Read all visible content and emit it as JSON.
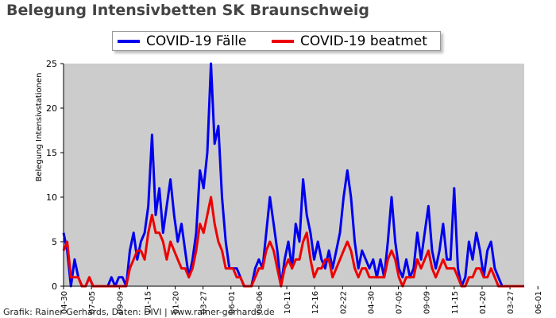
{
  "chart_data": {
    "type": "line",
    "title": "Belegung Intensivbetten SK Braunschweig",
    "ylabel": "Belegung Intensivstationen",
    "xlabel": "",
    "ylim": [
      0,
      25
    ],
    "yticks": [
      0,
      5,
      10,
      15,
      20,
      25
    ],
    "x_tick_labels": [
      "04-30",
      "07-05",
      "09-09",
      "11-15",
      "01-20",
      "03-27",
      "06-01",
      "08-06",
      "10-11",
      "12-16",
      "02-22",
      "04-30",
      "07-05",
      "09-09",
      "11-15",
      "01-20",
      "03-27",
      "06-01"
    ],
    "grid": false,
    "legend_position": "top",
    "colors": {
      "plot_background": "#cccccc",
      "fall_line": "#0000ee",
      "beatmet_line": "#ee0000"
    },
    "series": [
      {
        "name": "COVID-19 Fälle",
        "color": "#0000ee",
        "values": [
          6,
          4,
          0,
          3,
          1,
          0,
          0,
          1,
          0,
          0,
          0,
          0,
          0,
          1,
          0,
          1,
          1,
          0,
          4,
          6,
          3,
          5,
          6,
          9,
          17,
          8,
          11,
          6,
          9,
          12,
          8,
          5,
          7,
          4,
          1,
          3,
          6,
          13,
          11,
          15,
          25,
          16,
          18,
          10,
          5,
          2,
          2,
          2,
          1,
          0,
          0,
          0,
          2,
          3,
          2,
          6,
          10,
          7,
          4,
          0,
          3,
          5,
          2,
          7,
          5,
          12,
          8,
          6,
          3,
          5,
          3,
          2,
          4,
          2,
          4,
          6,
          10,
          13,
          10,
          5,
          2,
          4,
          3,
          2,
          3,
          1,
          3,
          1,
          5,
          10,
          5,
          2,
          1,
          3,
          1,
          2,
          6,
          3,
          6,
          9,
          4,
          2,
          4,
          7,
          3,
          3,
          11,
          2,
          0,
          1,
          5,
          3,
          6,
          4,
          1,
          4,
          5,
          2,
          1,
          0,
          0,
          0,
          0,
          0,
          0,
          0
        ]
      },
      {
        "name": "COVID-19 beatmet",
        "color": "#ee0000",
        "values": [
          4,
          5,
          1,
          1,
          1,
          0,
          0,
          1,
          0,
          0,
          0,
          0,
          0,
          0,
          0,
          0,
          0,
          0,
          2,
          3,
          4,
          4,
          3,
          6,
          8,
          6,
          6,
          5,
          3,
          5,
          4,
          3,
          2,
          2,
          1,
          2,
          4,
          7,
          6,
          8,
          10,
          7,
          5,
          4,
          2,
          2,
          2,
          1,
          1,
          0,
          0,
          0,
          1,
          2,
          2,
          4,
          5,
          4,
          2,
          0,
          2,
          3,
          2,
          3,
          3,
          5,
          6,
          3,
          1,
          2,
          2,
          3,
          3,
          1,
          2,
          3,
          4,
          5,
          4,
          2,
          1,
          2,
          2,
          1,
          1,
          1,
          1,
          1,
          3,
          4,
          3,
          1,
          0,
          1,
          1,
          1,
          3,
          2,
          3,
          4,
          2,
          1,
          2,
          3,
          2,
          2,
          2,
          1,
          0,
          0,
          1,
          1,
          2,
          2,
          1,
          1,
          2,
          1,
          0,
          0,
          0,
          0,
          0,
          0,
          0,
          0
        ]
      }
    ]
  },
  "legend": {
    "fall_label": "COVID-19 Fälle",
    "beatmet_label": "COVID-19 beatmet"
  },
  "footer": "Grafik: Rainer Gerhards, Daten: DIVI | www.rainer-gerhards.de"
}
